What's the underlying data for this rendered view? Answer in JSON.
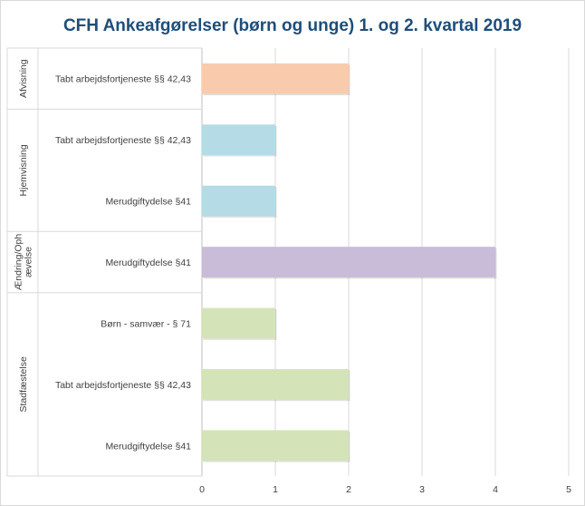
{
  "chart_data": {
    "type": "bar",
    "orientation": "horizontal",
    "title": "CFH Ankeafgørelser (børn og unge) 1. og 2. kvartal 2019",
    "xlabel": "",
    "ylabel": "",
    "xlim": [
      0,
      5
    ],
    "x_ticks": [
      "0",
      "1",
      "2",
      "3",
      "4",
      "5"
    ],
    "grid": true,
    "legend": "none",
    "groups": [
      {
        "name": "Afvisning",
        "lines": [
          "Afvisning"
        ],
        "color": "#f8cbad",
        "bars": [
          {
            "label": "Tabt arbejdsfortjeneste §§ 42,43",
            "value": 2
          }
        ]
      },
      {
        "name": "Hjemvisning",
        "lines": [
          "Hjemvisning"
        ],
        "color": "#b4dbe6",
        "bars": [
          {
            "label": "Tabt arbejdsfortjeneste §§ 42,43",
            "value": 1
          },
          {
            "label": "Merudgiftydelse §41",
            "value": 1
          }
        ]
      },
      {
        "name": "Ændring/Ophævelse",
        "lines": [
          "Ændring/Oph",
          "ævelse"
        ],
        "color": "#c9bcd9",
        "bars": [
          {
            "label": "Merudgiftydelse §41",
            "value": 4
          }
        ]
      },
      {
        "name": "Stadfæstelse",
        "lines": [
          "Stadfæstelse"
        ],
        "color": "#d5e4b8",
        "bars": [
          {
            "label": "Børn - samvær - § 71",
            "value": 1
          },
          {
            "label": "Tabt arbejdsfortjeneste §§ 42,43",
            "value": 2
          },
          {
            "label": "Merudgiftydelse §41",
            "value": 2
          }
        ]
      }
    ]
  }
}
